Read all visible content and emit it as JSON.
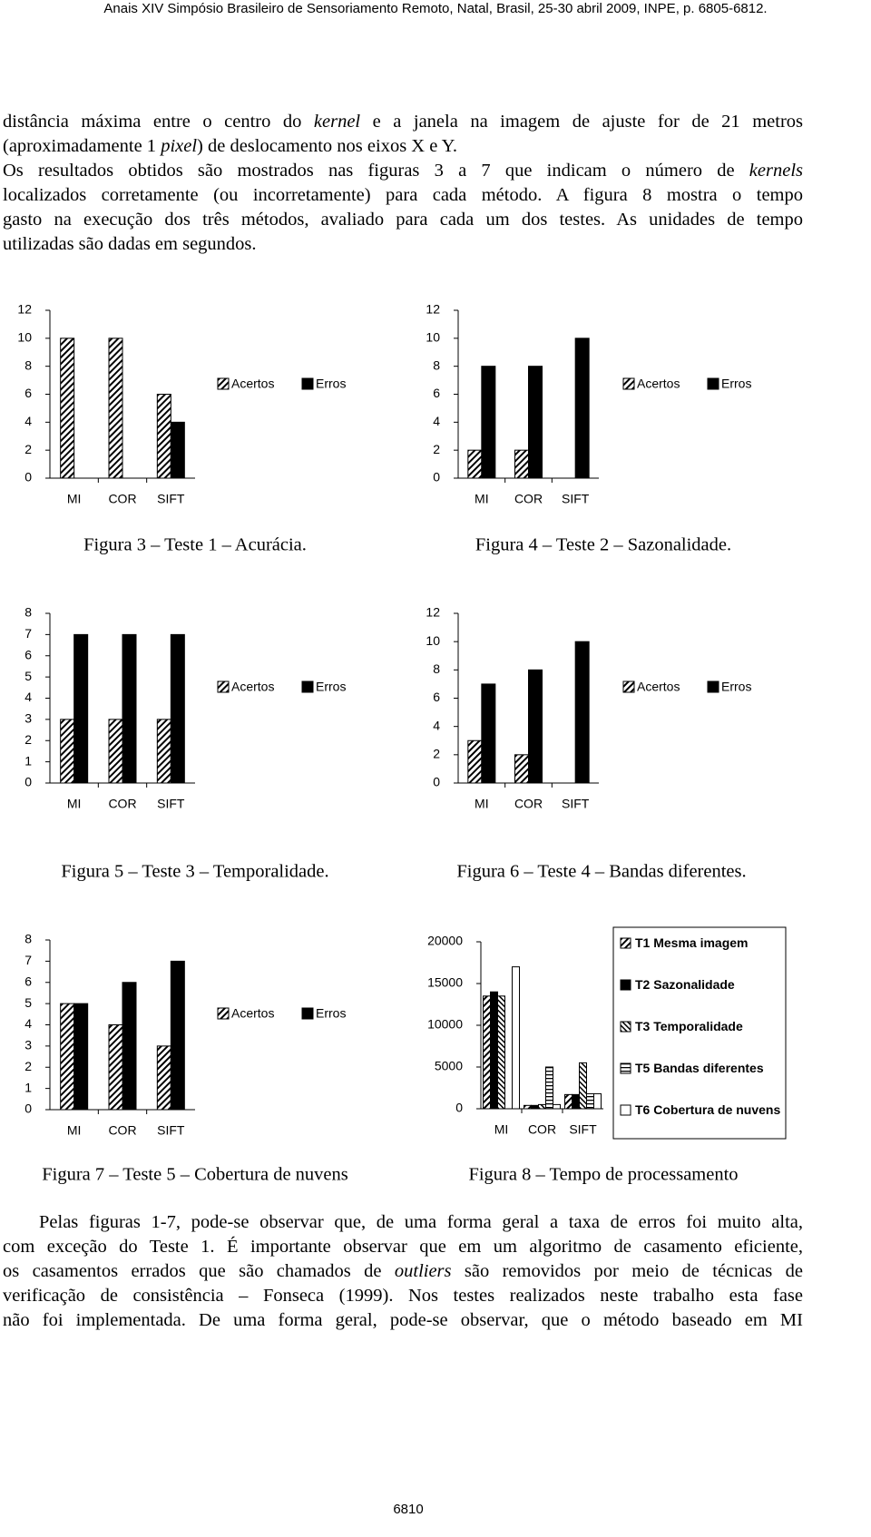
{
  "header": "Anais XIV Simpósio Brasileiro de Sensoriamento Remoto, Natal, Brasil, 25-30 abril 2009, INPE, p. 6805-6812.",
  "paragraphs": [
    {
      "lines": [
        [
          "distância máxima entre o centro do ",
          {
            "text": "kernel",
            "italic": true
          },
          " e a janela na imagem de ajuste for de  21 metros"
        ],
        [
          "(aproximadamente 1 ",
          {
            "text": "pixel",
            "italic": true
          },
          ") de deslocamento nos eixos X e Y."
        ],
        [
          "Os resultados obtidos são mostrados nas figuras 3 a 7 que indicam o número de ",
          {
            "text": "kernels",
            "italic": true
          }
        ],
        [
          "localizados corretamente (ou incorretamente) para cada método. A figura 8 mostra o tempo"
        ],
        [
          "gasto na execução dos três métodos, avaliado para cada um dos testes. As unidades de tempo"
        ],
        [
          "utilizadas são dadas em segundos."
        ]
      ]
    },
    {
      "lines": [
        [
          "Pelas figuras 1-7, pode-se observar que, de uma forma geral a taxa de erros foi muito alta,"
        ],
        [
          "com exceção do Teste 1. É importante observar que em um algoritmo de casamento eficiente,"
        ],
        [
          "os casamentos errados que são chamados de ",
          {
            "text": "outliers",
            "italic": true
          },
          " são removidos por meio de técnicas de"
        ],
        [
          "verificação de consistência – Fonseca (1999). Nos testes realizados neste trabalho esta fase"
        ],
        [
          "não foi implementada. De uma forma geral, pode-se observar, que o método baseado em MI"
        ]
      ]
    }
  ],
  "chart_data": [
    {
      "type": "bar",
      "caption": "Figura 3 – Teste 1 – Acurácia.",
      "categories": [
        "MI",
        "COR",
        "SIFT"
      ],
      "series": [
        {
          "name": "Acertos",
          "color": "#000000",
          "pattern": "diagonal",
          "values": [
            10,
            10,
            6
          ]
        },
        {
          "name": "Erros",
          "color": "#000000",
          "pattern": "solid",
          "values": [
            0,
            0,
            4
          ]
        }
      ],
      "ylim": [
        0,
        12
      ],
      "yticks": [
        0,
        2,
        4,
        6,
        8,
        10,
        12
      ],
      "legend": "right"
    },
    {
      "type": "bar",
      "caption": "Figura 4 – Teste 2 – Sazonalidade.",
      "categories": [
        "MI",
        "COR",
        "SIFT"
      ],
      "series": [
        {
          "name": "Acertos",
          "color": "#000000",
          "pattern": "diagonal",
          "values": [
            2,
            2,
            0
          ]
        },
        {
          "name": "Erros",
          "color": "#000000",
          "pattern": "solid",
          "values": [
            8,
            8,
            10
          ]
        }
      ],
      "ylim": [
        0,
        12
      ],
      "yticks": [
        0,
        2,
        4,
        6,
        8,
        10,
        12
      ],
      "legend": "right"
    },
    {
      "type": "bar",
      "caption": "Figura 5 – Teste 3 – Temporalidade.",
      "categories": [
        "MI",
        "COR",
        "SIFT"
      ],
      "series": [
        {
          "name": "Acertos",
          "color": "#000000",
          "pattern": "diagonal",
          "values": [
            3,
            3,
            3
          ]
        },
        {
          "name": "Erros",
          "color": "#000000",
          "pattern": "solid",
          "values": [
            7,
            7,
            7
          ]
        }
      ],
      "ylim": [
        0,
        8
      ],
      "yticks": [
        0,
        1,
        2,
        3,
        4,
        5,
        6,
        7,
        8
      ],
      "legend": "right"
    },
    {
      "type": "bar",
      "caption": "Figura 6 – Teste 4 – Bandas diferentes.",
      "categories": [
        "MI",
        "COR",
        "SIFT"
      ],
      "series": [
        {
          "name": "Acertos",
          "color": "#000000",
          "pattern": "diagonal",
          "values": [
            3,
            2,
            0
          ]
        },
        {
          "name": "Erros",
          "color": "#000000",
          "pattern": "solid",
          "values": [
            7,
            8,
            10
          ]
        }
      ],
      "ylim": [
        0,
        12
      ],
      "yticks": [
        0,
        2,
        4,
        6,
        8,
        10,
        12
      ],
      "legend": "right"
    },
    {
      "type": "bar",
      "caption": "Figura 7 – Teste 5 – Cobertura de nuvens",
      "categories": [
        "MI",
        "COR",
        "SIFT"
      ],
      "series": [
        {
          "name": "Acertos",
          "color": "#000000",
          "pattern": "diagonal",
          "values": [
            5,
            4,
            3
          ]
        },
        {
          "name": "Erros",
          "color": "#000000",
          "pattern": "solid",
          "values": [
            5,
            6,
            7
          ]
        }
      ],
      "ylim": [
        0,
        8
      ],
      "yticks": [
        0,
        1,
        2,
        3,
        4,
        5,
        6,
        7,
        8
      ],
      "legend": "right"
    },
    {
      "type": "bar",
      "caption": "Figura 8 – Tempo de processamento",
      "categories": [
        "MI",
        "COR",
        "SIFT"
      ],
      "series": [
        {
          "name": "T1 Mesma imagem",
          "color": "#000000",
          "pattern": "diagonal",
          "values": [
            13500,
            400,
            1700
          ]
        },
        {
          "name": "T2 Sazonalidade",
          "color": "#000000",
          "pattern": "solid",
          "values": [
            14000,
            400,
            1700
          ]
        },
        {
          "name": "T3 Temporalidade",
          "color": "#000000",
          "pattern": "diagonal-back",
          "values": [
            13500,
            500,
            5500
          ]
        },
        {
          "name": "T5 Bandas diferentes",
          "color": "#000000",
          "pattern": "horizontal",
          "values": [
            0,
            5000,
            1800
          ]
        },
        {
          "name": "T6 Cobertura de nuvens",
          "color": "#000000",
          "pattern": "white",
          "values": [
            17000,
            500,
            1800
          ]
        }
      ],
      "ylim": [
        0,
        20000
      ],
      "yticks": [
        0,
        5000,
        10000,
        15000,
        20000
      ],
      "legend": "right"
    }
  ],
  "page_number": "6810"
}
